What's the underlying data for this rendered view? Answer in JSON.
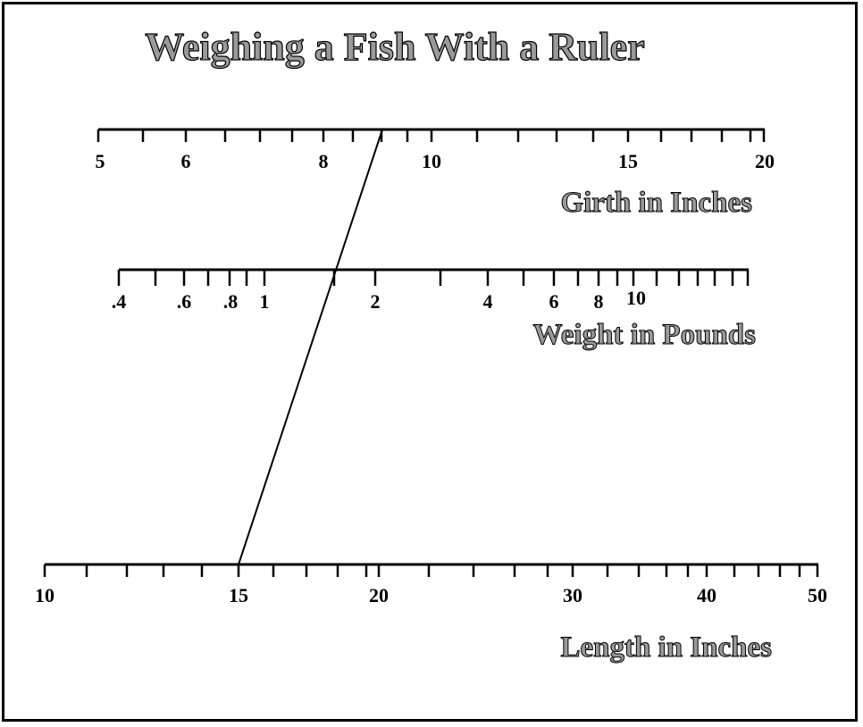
{
  "title": "Weighing a Fish With a Ruler",
  "scales": {
    "girth": {
      "title": "Girth in Inches",
      "labels": [
        "5",
        "6",
        "8",
        "10",
        "15",
        "20"
      ]
    },
    "weight": {
      "title": "Weight in Pounds",
      "labels": [
        ".4",
        ".6",
        ".8",
        "1",
        "2",
        "4",
        "6",
        "8",
        "10"
      ]
    },
    "length": {
      "title": "Length in Inches",
      "labels": [
        "10",
        "15",
        "20",
        "30",
        "40",
        "50"
      ]
    }
  },
  "example_line": {
    "length_in": 15,
    "weight_lb": 1.55,
    "girth_in": 8.8
  }
}
